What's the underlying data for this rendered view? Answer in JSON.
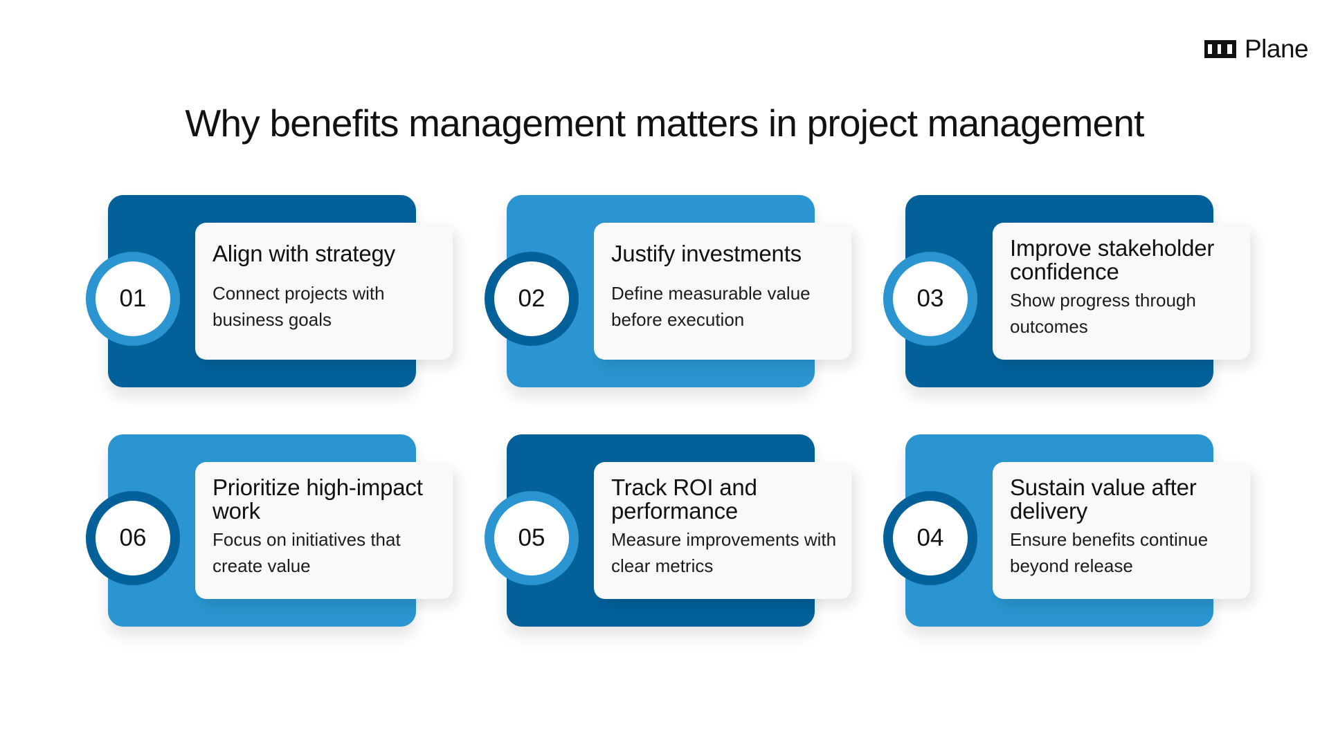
{
  "brand": {
    "name": "Plane",
    "icon": "plane-logo-icon"
  },
  "title": "Why benefits management matters in project management",
  "colors": {
    "dark_blue": "#036099",
    "light_blue": "#2a95d0",
    "panel": "#f9f9f9"
  },
  "cards": [
    {
      "number": "01",
      "title": "Align with strategy",
      "description": "Connect projects with business goals",
      "variant": "dark"
    },
    {
      "number": "02",
      "title": "Justify investments",
      "description": "Define measurable value before execution",
      "variant": "light"
    },
    {
      "number": "03",
      "title": "Improve stakeholder confidence",
      "description": "Show progress through outcomes",
      "variant": "dark"
    },
    {
      "number": "04",
      "title": "Sustain value after delivery",
      "description": "Ensure benefits continue beyond release",
      "variant": "light"
    },
    {
      "number": "05",
      "title": "Track ROI and performance",
      "description": "Measure improvements with clear metrics",
      "variant": "dark"
    },
    {
      "number": "06",
      "title": "Prioritize high-impact work",
      "description": "Focus on initiatives that create value",
      "variant": "light"
    }
  ]
}
